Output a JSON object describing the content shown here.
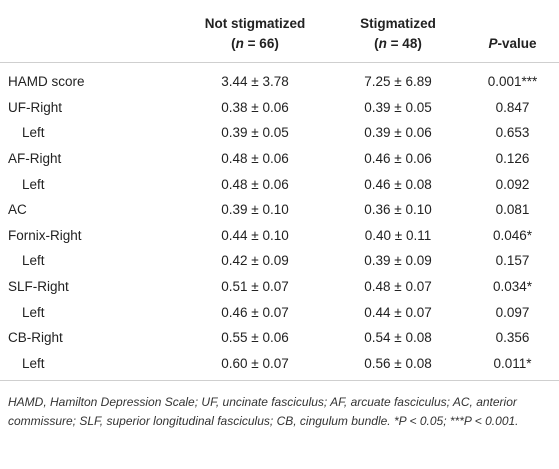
{
  "table": {
    "header": [
      null,
      {
        "line1": "Not stigmatized",
        "line2": [
          "(",
          "n",
          " = 66)"
        ]
      },
      {
        "line1": "Stigmatized",
        "line2": [
          "(",
          "n",
          " = 48)"
        ]
      },
      {
        "line1": [
          "P",
          "-value"
        ]
      }
    ],
    "rows": [
      [
        "HAMD score",
        "3.44 ± 3.78",
        "7.25 ± 6.89",
        "0.001***"
      ],
      [
        "UF-Right",
        "0.38 ± 0.06",
        "0.39 ± 0.05",
        "0.847"
      ],
      [
        "Left",
        "0.39 ± 0.05",
        "0.39 ± 0.06",
        "0.653"
      ],
      [
        "AF-Right",
        "0.48 ± 0.06",
        "0.46 ± 0.06",
        "0.126"
      ],
      [
        "Left",
        "0.48 ± 0.06",
        "0.46 ± 0.08",
        "0.092"
      ],
      [
        "AC",
        "0.39 ± 0.10",
        "0.36 ± 0.10",
        "0.081"
      ],
      [
        "Fornix-Right",
        "0.44 ± 0.10",
        "0.40 ± 0.11",
        "0.046*"
      ],
      [
        "Left",
        "0.42 ± 0.09",
        "0.39 ± 0.09",
        "0.157"
      ],
      [
        "SLF-Right",
        "0.51 ± 0.07",
        "0.48 ± 0.07",
        "0.034*"
      ],
      [
        "Left",
        "0.46 ± 0.07",
        "0.44 ± 0.07",
        "0.097"
      ],
      [
        "CB-Right",
        "0.55 ± 0.06",
        "0.54 ± 0.08",
        "0.356"
      ],
      [
        "Left",
        "0.60 ± 0.07",
        "0.56 ± 0.08",
        "0.011*"
      ]
    ]
  },
  "footnote": "HAMD, Hamilton Depression Scale; UF, uncinate fasciculus; AF, arcuate fasciculus; AC, anterior commissure; SLF, superior longitudinal fasciculus; CB, cingulum bundle. *P < 0.05; ***P < 0.001."
}
